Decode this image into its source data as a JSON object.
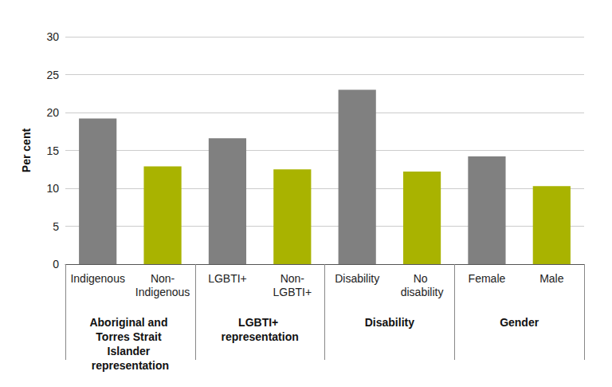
{
  "chart_data": {
    "type": "bar",
    "ylabel": "Per cent",
    "groups": [
      {
        "name": "Aboriginal and Torres Strait Islander representation",
        "categories": [
          "Indigenous",
          "Non-Indigenous"
        ]
      },
      {
        "name": "LGBTI+ representation",
        "categories": [
          "LGBTI+",
          "Non-LGBTI+"
        ]
      },
      {
        "name": "Disability",
        "categories": [
          "Disability",
          "No disability"
        ]
      },
      {
        "name": "Gender",
        "categories": [
          "Female",
          "Male"
        ]
      }
    ],
    "values": [
      19.2,
      12.9,
      16.6,
      12.5,
      23.0,
      12.2,
      14.2,
      10.3
    ],
    "colors": [
      "#808080",
      "#a9b300",
      "#808080",
      "#a9b300",
      "#808080",
      "#a9b300",
      "#808080",
      "#a9b300"
    ],
    "ylim": [
      0,
      30
    ],
    "yticks": [
      0,
      5,
      10,
      15,
      20,
      25,
      30
    ],
    "grid": true
  }
}
